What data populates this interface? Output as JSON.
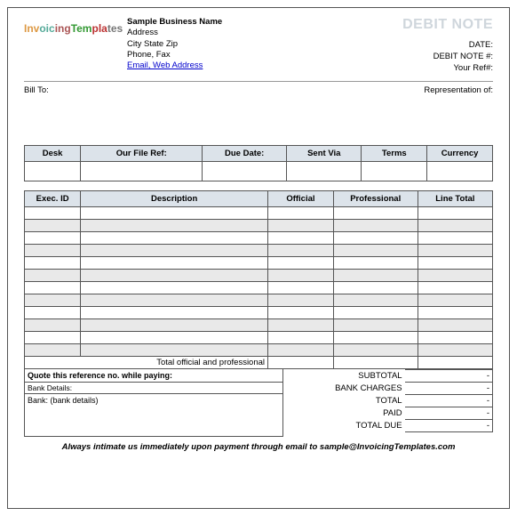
{
  "logo_text": "InvoicingTemplates",
  "business": {
    "name": "Sample Business Name",
    "address": "Address",
    "csz": "City State Zip",
    "phone": "Phone, Fax",
    "link": "Email, Web Address"
  },
  "doc_title": "DEBIT NOTE",
  "header_right": {
    "date": "DATE:",
    "debit_no": "DEBIT NOTE #:",
    "your_ref": "Your Ref#:"
  },
  "bill_to_label": "Bill To:",
  "rep_of_label": "Representation of:",
  "table1": {
    "headers": [
      "Desk",
      "Our File Ref:",
      "Due Date:",
      "Sent Via",
      "Terms",
      "Currency"
    ],
    "values": [
      "",
      "",
      "",
      "",
      "",
      ""
    ],
    "col_widths": [
      "12%",
      "26%",
      "18%",
      "16%",
      "14%",
      "14%"
    ]
  },
  "table2": {
    "headers": [
      "Exec. ID",
      "Description",
      "Official",
      "Professional",
      "Line Total"
    ],
    "col_widths": [
      "12%",
      "40%",
      "14%",
      "18%",
      "16%"
    ],
    "row_count": 12,
    "foot_label": "Total official and professional",
    "foot_values": [
      "",
      "",
      ""
    ]
  },
  "quote_text": "Quote this reference no. while paying:",
  "bank_header": "Bank Details:",
  "bank_body": "Bank: (bank details)",
  "summary": {
    "rows": [
      {
        "label": "SUBTOTAL",
        "value": "-"
      },
      {
        "label": "BANK CHARGES",
        "value": "-"
      },
      {
        "label": "TOTAL",
        "value": "-"
      },
      {
        "label": "PAID",
        "value": "-"
      },
      {
        "label": "TOTAL DUE",
        "value": "-"
      }
    ]
  },
  "footer": "Always intimate us immediately upon payment through email to sample@InvoicingTemplates.com",
  "colors": {
    "header_bg": "#dce3ea",
    "alt_row": "#e9e9e9",
    "border": "#555555",
    "title": "#cfd6dc",
    "link": "#0000cc"
  }
}
